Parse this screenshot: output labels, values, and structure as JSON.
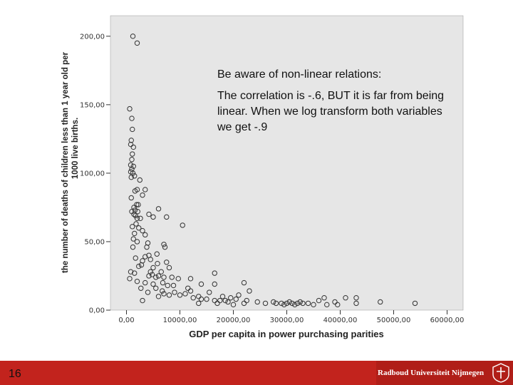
{
  "chart_data": {
    "type": "scatter",
    "xlabel": "GDP per capita in power purchasing parities",
    "ylabel": "the number of deaths of children less than 1 year old per 1000 live births.",
    "ylabel_lines": [
      "the number of deaths of children less than 1 year old per",
      "1000 live births."
    ],
    "xlim": [
      -3000,
      63000
    ],
    "ylim": [
      0,
      215
    ],
    "x_ticks": [
      0,
      10000,
      20000,
      30000,
      40000,
      50000,
      60000
    ],
    "x_tick_labels": [
      "0,00",
      "10000,00",
      "20000,00",
      "30000,00",
      "40000,00",
      "50000,00",
      "60000,00"
    ],
    "y_ticks": [
      0,
      50,
      100,
      150,
      200
    ],
    "y_tick_labels": [
      "0,00",
      "50,00",
      "100,00",
      "150,00",
      "200,00"
    ],
    "grid": false,
    "background": "#e6e6e6",
    "marker": "open-circle",
    "points": [
      [
        1200,
        200
      ],
      [
        2000,
        195
      ],
      [
        600,
        147
      ],
      [
        1000,
        140
      ],
      [
        1100,
        132
      ],
      [
        900,
        124
      ],
      [
        800,
        121
      ],
      [
        1300,
        119
      ],
      [
        1100,
        114
      ],
      [
        1000,
        110
      ],
      [
        800,
        106
      ],
      [
        1300,
        105
      ],
      [
        1000,
        103
      ],
      [
        800,
        101
      ],
      [
        1200,
        100
      ],
      [
        1500,
        98
      ],
      [
        900,
        97
      ],
      [
        2500,
        95
      ],
      [
        3500,
        88
      ],
      [
        2000,
        88
      ],
      [
        1600,
        87
      ],
      [
        3000,
        84
      ],
      [
        900,
        82
      ],
      [
        1900,
        77
      ],
      [
        2200,
        77
      ],
      [
        1400,
        75
      ],
      [
        1600,
        73
      ],
      [
        6000,
        74
      ],
      [
        2100,
        72
      ],
      [
        1000,
        72
      ],
      [
        1400,
        70
      ],
      [
        4200,
        70
      ],
      [
        1700,
        69
      ],
      [
        2000,
        67
      ],
      [
        5000,
        68
      ],
      [
        7500,
        68
      ],
      [
        2600,
        67
      ],
      [
        1800,
        63
      ],
      [
        1100,
        61
      ],
      [
        10500,
        62
      ],
      [
        2300,
        60
      ],
      [
        3000,
        58
      ],
      [
        1500,
        56
      ],
      [
        3500,
        55
      ],
      [
        1300,
        52
      ],
      [
        2000,
        50
      ],
      [
        4000,
        49
      ],
      [
        7000,
        48
      ],
      [
        1200,
        46
      ],
      [
        3800,
        46
      ],
      [
        7200,
        46
      ],
      [
        5700,
        41
      ],
      [
        4200,
        40
      ],
      [
        3500,
        39
      ],
      [
        1700,
        38
      ],
      [
        4500,
        37
      ],
      [
        3000,
        36
      ],
      [
        7500,
        35
      ],
      [
        5800,
        34
      ],
      [
        2800,
        33
      ],
      [
        2300,
        32
      ],
      [
        5000,
        31
      ],
      [
        8000,
        31
      ],
      [
        800,
        28
      ],
      [
        1500,
        27
      ],
      [
        4500,
        28
      ],
      [
        6500,
        28
      ],
      [
        4800,
        26
      ],
      [
        6000,
        25
      ],
      [
        4200,
        25
      ],
      [
        5500,
        24
      ],
      [
        7000,
        24
      ],
      [
        8500,
        24
      ],
      [
        16500,
        27
      ],
      [
        600,
        23
      ],
      [
        9700,
        23
      ],
      [
        12000,
        23
      ],
      [
        2000,
        21
      ],
      [
        3500,
        20
      ],
      [
        6800,
        20
      ],
      [
        5000,
        19
      ],
      [
        7700,
        18
      ],
      [
        8800,
        18
      ],
      [
        14000,
        19
      ],
      [
        16500,
        19
      ],
      [
        22000,
        20
      ],
      [
        2700,
        16
      ],
      [
        5500,
        16
      ],
      [
        11500,
        16
      ],
      [
        12000,
        14
      ],
      [
        6700,
        14
      ],
      [
        4000,
        13
      ],
      [
        9000,
        13
      ],
      [
        15500,
        13
      ],
      [
        23000,
        14
      ],
      [
        7000,
        12
      ],
      [
        11000,
        12
      ],
      [
        8000,
        11
      ],
      [
        10000,
        11
      ],
      [
        13500,
        10
      ],
      [
        18000,
        10
      ],
      [
        21000,
        11
      ],
      [
        6000,
        10
      ],
      [
        12500,
        9
      ],
      [
        19500,
        9
      ],
      [
        14000,
        8
      ],
      [
        15000,
        8
      ],
      [
        20500,
        8
      ],
      [
        16500,
        7
      ],
      [
        17500,
        7
      ],
      [
        22500,
        7
      ],
      [
        3000,
        7
      ],
      [
        18500,
        7
      ],
      [
        24500,
        6
      ],
      [
        27500,
        6
      ],
      [
        30500,
        6
      ],
      [
        32500,
        6
      ],
      [
        36000,
        7
      ],
      [
        39000,
        6
      ],
      [
        47500,
        6
      ],
      [
        54000,
        5
      ],
      [
        37000,
        9
      ],
      [
        41000,
        9
      ],
      [
        43000,
        9
      ],
      [
        19000,
        6
      ],
      [
        22000,
        5
      ],
      [
        26000,
        5
      ],
      [
        28000,
        5
      ],
      [
        29000,
        5
      ],
      [
        29500,
        4
      ],
      [
        30000,
        5
      ],
      [
        31000,
        5
      ],
      [
        31500,
        4
      ],
      [
        32000,
        5
      ],
      [
        33000,
        5
      ],
      [
        34000,
        5
      ],
      [
        35000,
        4
      ],
      [
        37500,
        4
      ],
      [
        39500,
        4
      ],
      [
        43000,
        5
      ],
      [
        20000,
        4
      ],
      [
        13500,
        5
      ],
      [
        17000,
        5
      ]
    ]
  },
  "annotation": {
    "heading": "Be aware of non-linear relations:",
    "body": "The correlation is -.6,  BUT it is far from being linear. When we log transform both variables we get -.9"
  },
  "footer": {
    "slide_number": "16",
    "logo_text": "Radboud Universiteit Nijmegen",
    "bar_color": "#c2231d"
  }
}
